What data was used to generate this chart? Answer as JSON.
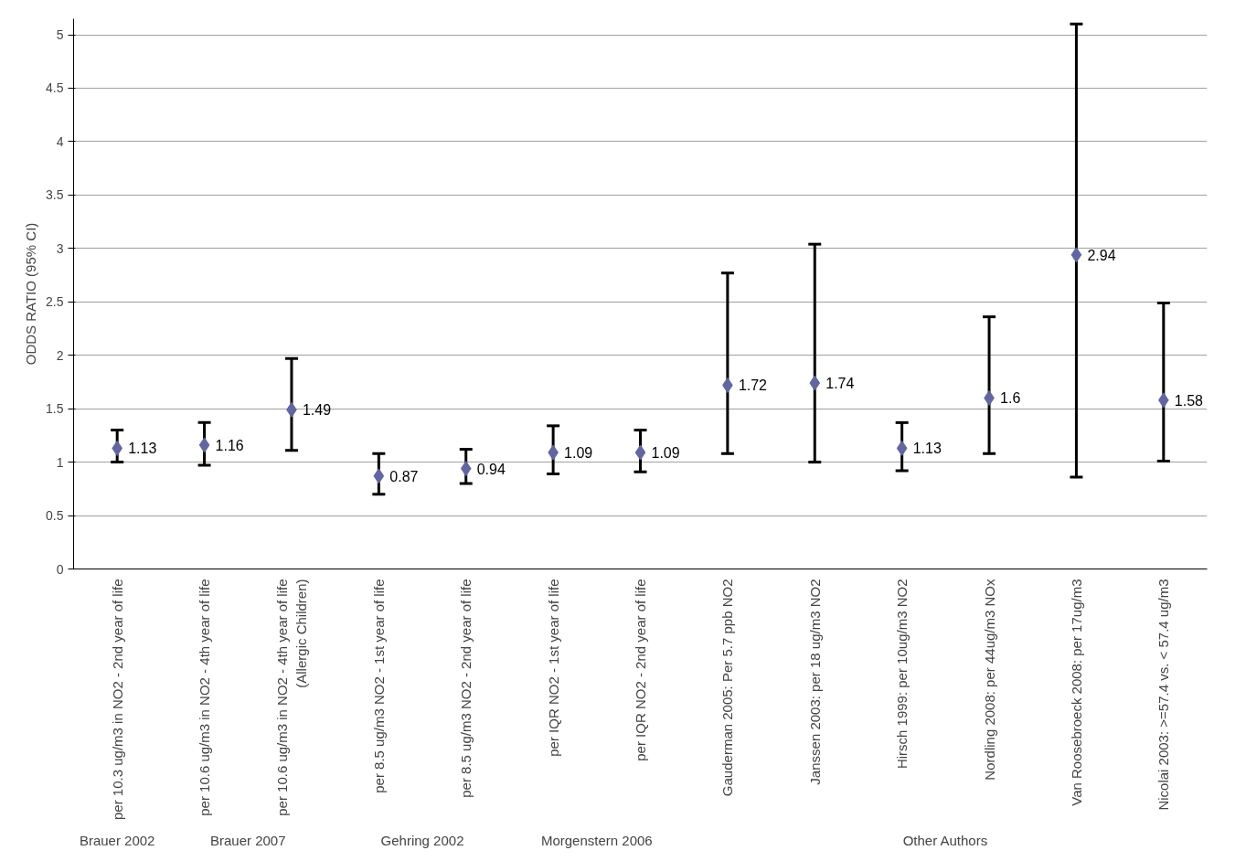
{
  "chart_data": {
    "type": "scatter",
    "ylabel": "ODDS RATIO (95% CI)",
    "categories": [
      "per 10.3 ug/m3 in NO2 - 2nd year of life",
      "per 10.6 ug/m3 in NO2 - 4th year of life",
      "per 10.6 ug/m3 in NO2 - 4th year of life\n(Allergic Children)",
      "per 8.5 ug/m3 NO2 - 1st year of life",
      "per 8.5 ug/m3 NO2 - 2nd year of life",
      "per IQR NO2 - 1st year of life",
      "per IQR NO2 - 2nd year of life",
      "Gauderman 2005: Per 5.7 ppb NO2",
      "Janssen 2003: per 18 ug/m3 NO2",
      "Hirsch 1999: per 10ug/m3 NO2",
      "Nordling 2008: per 44ug/m3 NOx",
      "Van Roosebroeck 2008: per 17ug/m3",
      "Nicolai 2003: >=57.4 vs. < 57.4 ug/m3"
    ],
    "values": [
      1.13,
      1.16,
      1.49,
      0.87,
      0.94,
      1.09,
      1.09,
      1.72,
      1.74,
      1.13,
      1.6,
      2.94,
      1.58
    ],
    "errors": [
      [
        1.0,
        1.3
      ],
      [
        0.97,
        1.37
      ],
      [
        1.11,
        1.97
      ],
      [
        0.7,
        1.08
      ],
      [
        0.8,
        1.12
      ],
      [
        0.89,
        1.34
      ],
      [
        0.91,
        1.3
      ],
      [
        1.08,
        2.77
      ],
      [
        1.0,
        3.04
      ],
      [
        0.92,
        1.37
      ],
      [
        1.08,
        2.36
      ],
      [
        0.86,
        5.1
      ],
      [
        1.01,
        2.49
      ]
    ],
    "color": "#6266a0",
    "marker": "diamond",
    "data_labels": true,
    "grid": "y",
    "ylim": [
      0,
      5.15
    ],
    "yticks": [
      0,
      0.5,
      1,
      1.5,
      2,
      2.5,
      3,
      3.5,
      4,
      4.5,
      5
    ],
    "annotations": [
      "Brauer 2002",
      "Brauer 2007",
      "Gehring 2002",
      "Morgenstern 2006",
      "Other Authors"
    ]
  }
}
